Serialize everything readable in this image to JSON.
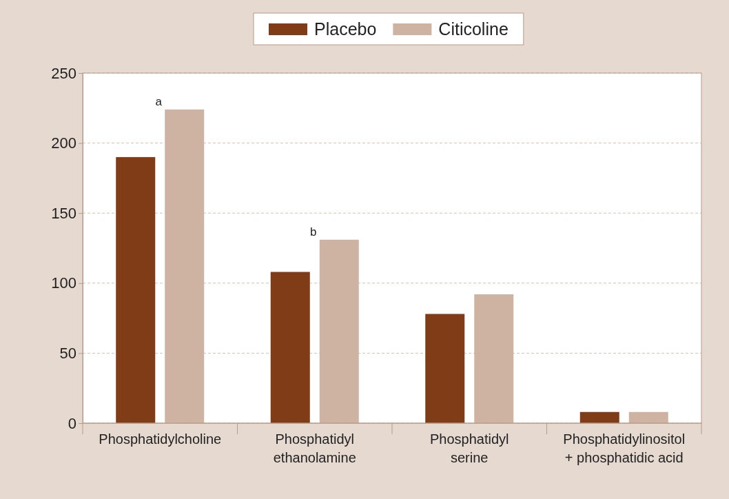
{
  "chart_data": {
    "type": "bar",
    "categories": [
      "Phosphatidylcholine",
      "Phosphatidyl\nethanolamine",
      "Phosphatidyl\nserine",
      "Phosphatidylinositol\n+ phosphatidic acid"
    ],
    "series": [
      {
        "name": "Placebo",
        "color": "#7f3c17",
        "values": [
          190,
          108,
          78,
          8
        ]
      },
      {
        "name": "Citicoline",
        "color": "#cfb3a2",
        "values": [
          224,
          131,
          92,
          8
        ]
      }
    ],
    "ylim": [
      0,
      250
    ],
    "yticks": [
      0,
      50,
      100,
      150,
      200,
      250
    ],
    "grid": "y",
    "legend": "top",
    "annotations": [
      "a",
      "b"
    ]
  }
}
